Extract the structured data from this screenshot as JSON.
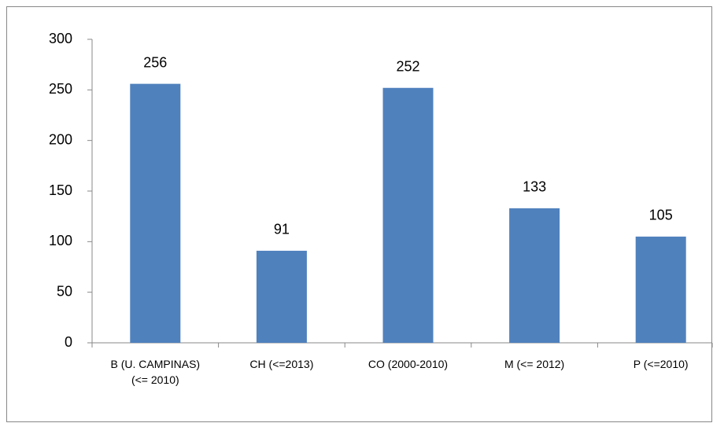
{
  "chart_data": {
    "type": "bar",
    "categories": [
      "B (U. CAMPINAS) (<= 2010)",
      "CH (<=2013)",
      "CO (2000-2010)",
      "M (<= 2012)",
      "P (<=2010)"
    ],
    "values": [
      256,
      91,
      252,
      133,
      105
    ],
    "color": "#4f81bd",
    "ylim": [
      0,
      300
    ],
    "yticks": [
      0,
      50,
      100,
      150,
      200,
      250,
      300
    ],
    "grid": false,
    "data_labels": true
  }
}
